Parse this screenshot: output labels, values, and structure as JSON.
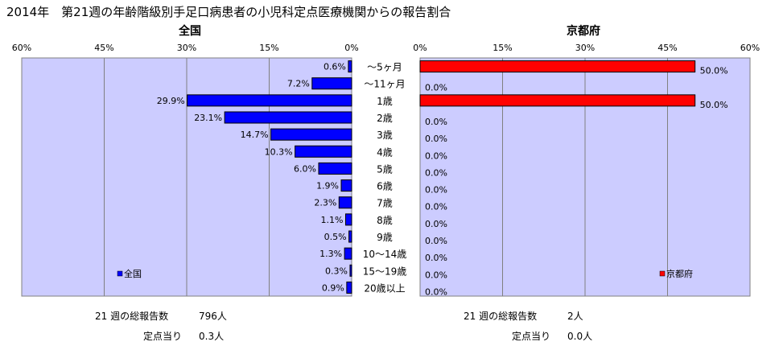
{
  "title": "2014年　第21週の年齢階級別手足口病患者の小児科定点医療機関からの報告割合",
  "chart_data": [
    {
      "type": "bar",
      "title": "全国",
      "orientation": "horizontal",
      "direction": "right-to-left",
      "categories": [
        "～5ヶ月",
        "～11ヶ月",
        "1歳",
        "2歳",
        "3歳",
        "4歳",
        "5歳",
        "6歳",
        "7歳",
        "8歳",
        "9歳",
        "10～14歳",
        "15～19歳",
        "20歳以上"
      ],
      "series": [
        {
          "name": "全国",
          "color": "#0000ff",
          "values": [
            0.6,
            7.2,
            29.9,
            23.1,
            14.7,
            10.3,
            6.0,
            1.9,
            2.3,
            1.1,
            0.5,
            1.3,
            0.3,
            0.9
          ],
          "labels": [
            "0.6%",
            "7.2%",
            "29.9%",
            "23.1%",
            "14.7%",
            "10.3%",
            "6.0%",
            "1.9%",
            "2.3%",
            "1.1%",
            "0.5%",
            "1.3%",
            "0.3%",
            "0.9%"
          ]
        }
      ],
      "xlim": [
        0,
        60
      ],
      "ticks": [
        "60%",
        "45%",
        "30%",
        "15%",
        "0%"
      ],
      "tick_values": [
        60,
        45,
        30,
        15,
        0
      ],
      "legend": "bottom-left",
      "grid": true
    },
    {
      "type": "bar",
      "title": "京都府",
      "orientation": "horizontal",
      "direction": "left-to-right",
      "categories": [
        "～5ヶ月",
        "～11ヶ月",
        "1歳",
        "2歳",
        "3歳",
        "4歳",
        "5歳",
        "6歳",
        "7歳",
        "8歳",
        "9歳",
        "10～14歳",
        "15～19歳",
        "20歳以上"
      ],
      "series": [
        {
          "name": "京都府",
          "color": "#ff0000",
          "values": [
            50.0,
            0.0,
            50.0,
            0.0,
            0.0,
            0.0,
            0.0,
            0.0,
            0.0,
            0.0,
            0.0,
            0.0,
            0.0,
            0.0
          ],
          "labels": [
            "50.0%",
            "0.0%",
            "50.0%",
            "0.0%",
            "0.0%",
            "0.0%",
            "0.0%",
            "0.0%",
            "0.0%",
            "0.0%",
            "0.0%",
            "0.0%",
            "0.0%",
            "0.0%"
          ]
        }
      ],
      "xlim": [
        0,
        60
      ],
      "ticks": [
        "0%",
        "15%",
        "30%",
        "45%",
        "60%"
      ],
      "tick_values": [
        0,
        15,
        30,
        45,
        60
      ],
      "legend": "bottom-right",
      "grid": true
    }
  ],
  "plot_colors": {
    "background": "#ccccff",
    "grid": "#808080",
    "border": "#808080"
  },
  "footer": {
    "national": {
      "total_label": "21 週の総報告数",
      "total_value": "796人",
      "per_label": "定点当り",
      "per_value": "0.3人"
    },
    "kyoto": {
      "total_label": "21 週の総報告数",
      "total_value": "2人",
      "per_label": "定点当り",
      "per_value": "0.0人"
    }
  }
}
